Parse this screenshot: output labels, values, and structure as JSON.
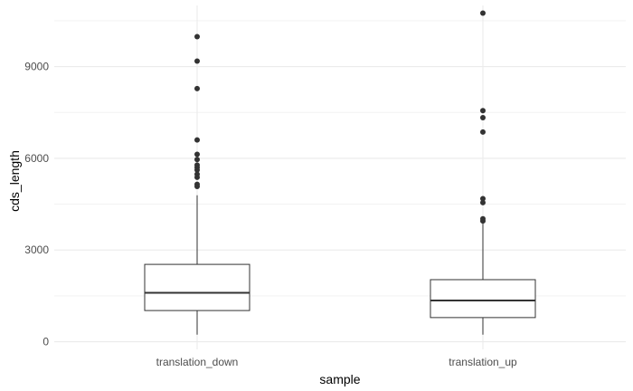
{
  "chart_data": {
    "type": "boxplot",
    "title": "",
    "xlabel": "sample",
    "ylabel": "cds_length",
    "categories": [
      "translation_down",
      "translation_up"
    ],
    "ylim": [
      -250,
      11000
    ],
    "yticks": [
      0,
      3000,
      6000,
      9000
    ],
    "ytick_labels": [
      "0",
      "3000",
      "6000",
      "9000"
    ],
    "grid": true,
    "boxes": [
      {
        "name": "translation_down",
        "whisker_low": 230,
        "q1": 1020,
        "median": 1600,
        "q3": 2530,
        "whisker_high": 4790,
        "outliers": [
          5080,
          5150,
          5380,
          5480,
          5620,
          5700,
          5780,
          5960,
          6130,
          6600,
          8280,
          9180,
          9980
        ]
      },
      {
        "name": "translation_up",
        "whisker_low": 230,
        "q1": 790,
        "median": 1350,
        "q3": 2030,
        "whisker_high": 3870,
        "outliers": [
          3950,
          4020,
          4550,
          4680,
          6860,
          7330,
          7560,
          10750
        ]
      }
    ]
  },
  "colors": {
    "background": "#ffffff",
    "grid": "#ebebeb",
    "box_stroke": "#333333",
    "outlier": "#333333",
    "tick_text": "#4d4d4d",
    "axis_title": "#000000"
  }
}
